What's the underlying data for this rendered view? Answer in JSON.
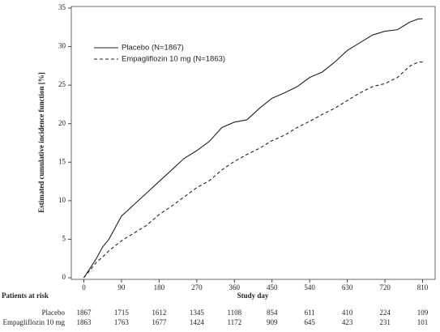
{
  "chart_data": {
    "type": "line",
    "y_label": "Estimated cumulative incidence function [%]",
    "x_label": "Study day",
    "x": [
      0,
      30,
      45,
      60,
      90,
      120,
      150,
      180,
      210,
      240,
      270,
      300,
      330,
      360,
      390,
      420,
      450,
      480,
      510,
      540,
      570,
      600,
      630,
      660,
      690,
      720,
      750,
      780,
      800,
      810
    ],
    "series": [
      {
        "name": "Placebo (N=1867)",
        "color": "#222222",
        "dash": false,
        "values": [
          0,
          2.5,
          4,
          5,
          8,
          9.5,
          11,
          12.5,
          14,
          15.5,
          16.5,
          17.7,
          19.5,
          20.2,
          20.5,
          22,
          23.3,
          24,
          24.8,
          26,
          26.7,
          28,
          29.5,
          30.5,
          31.5,
          32,
          32.2,
          33.2,
          33.6,
          33.6
        ]
      },
      {
        "name": "Empagliflozin 10 mg (N=1863)",
        "color": "#222222",
        "dash": true,
        "values": [
          0,
          2,
          2.7,
          3.5,
          4.8,
          5.8,
          6.8,
          8.2,
          9.3,
          10.5,
          11.7,
          12.6,
          14,
          15.1,
          16,
          16.8,
          17.8,
          18.5,
          19.5,
          20.3,
          21.2,
          22,
          23,
          24,
          24.8,
          25.2,
          26,
          27.5,
          28,
          28
        ]
      }
    ],
    "xlim": [
      -30,
      840
    ],
    "xticks": [
      0,
      90,
      180,
      270,
      360,
      450,
      540,
      630,
      720,
      810
    ],
    "ylim": [
      0,
      35
    ],
    "yticks": [
      0,
      5,
      10,
      15,
      20,
      25,
      30,
      35
    ],
    "legend": "upper left",
    "risk_table": {
      "title": "Patients at risk",
      "rows": [
        {
          "name": "Placebo",
          "values": [
            1867,
            1715,
            1612,
            1345,
            1108,
            854,
            611,
            410,
            224,
            109
          ]
        },
        {
          "name": "Empagliflozin 10 mg",
          "values": [
            1863,
            1763,
            1677,
            1424,
            1172,
            909,
            645,
            423,
            231,
            101
          ]
        }
      ]
    }
  }
}
